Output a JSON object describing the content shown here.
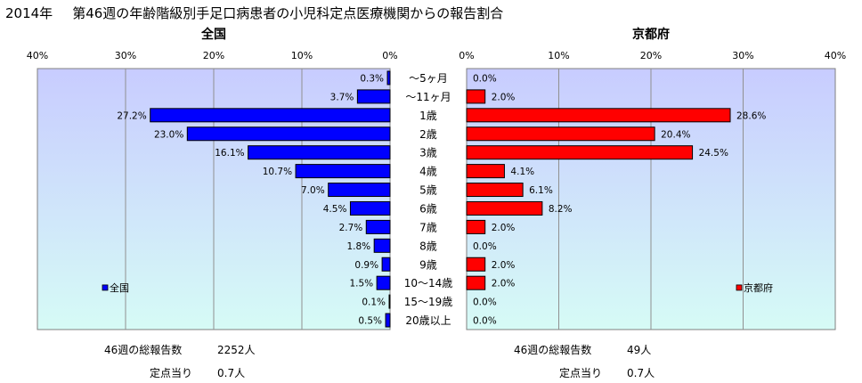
{
  "title": {
    "year": "2014年",
    "text": "第46週の年齢階級別手足口病患者の小児科定点医療機関からの報告割合"
  },
  "chart_data": [
    {
      "type": "bar",
      "orientation": "horizontal",
      "direction": "right-to-left",
      "title": "全国",
      "legend": "全国",
      "legend_position": "bottom-left",
      "grid": true,
      "xlim": [
        0,
        40
      ],
      "x_ticks": [
        "40%",
        "30%",
        "20%",
        "10%",
        "0%"
      ],
      "categories": [
        "～5ヶ月",
        "～11ヶ月",
        "1歳",
        "2歳",
        "3歳",
        "4歳",
        "5歳",
        "6歳",
        "7歳",
        "8歳",
        "9歳",
        "10～14歳",
        "15～19歳",
        "20歳以上"
      ],
      "series": [
        {
          "name": "全国",
          "color": "#0000ff",
          "values": [
            0.3,
            3.7,
            27.2,
            23.0,
            16.1,
            10.7,
            7.0,
            4.5,
            2.7,
            1.8,
            0.9,
            1.5,
            0.1,
            0.5
          ],
          "labels": [
            "0.3%",
            "3.7%",
            "27.2%",
            "23.0%",
            "16.1%",
            "10.7%",
            "7.0%",
            "4.5%",
            "2.7%",
            "1.8%",
            "0.9%",
            "1.5%",
            "0.1%",
            "0.5%"
          ]
        }
      ]
    },
    {
      "type": "bar",
      "orientation": "horizontal",
      "direction": "left-to-right",
      "title": "京都府",
      "legend": "京都府",
      "legend_position": "bottom-right",
      "grid": true,
      "xlim": [
        0,
        40
      ],
      "x_ticks": [
        "0%",
        "10%",
        "20%",
        "30%",
        "40%"
      ],
      "categories": [
        "～5ヶ月",
        "～11ヶ月",
        "1歳",
        "2歳",
        "3歳",
        "4歳",
        "5歳",
        "6歳",
        "7歳",
        "8歳",
        "9歳",
        "10～14歳",
        "15～19歳",
        "20歳以上"
      ],
      "series": [
        {
          "name": "京都府",
          "color": "#ff0000",
          "values": [
            0.0,
            2.0,
            28.6,
            20.4,
            24.5,
            4.1,
            6.1,
            8.2,
            2.0,
            0.0,
            2.0,
            2.0,
            0.0,
            0.0
          ],
          "labels": [
            "0.0%",
            "2.0%",
            "28.6%",
            "20.4%",
            "24.5%",
            "4.1%",
            "6.1%",
            "8.2%",
            "2.0%",
            "0.0%",
            "2.0%",
            "2.0%",
            "0.0%",
            "0.0%"
          ]
        }
      ]
    }
  ],
  "summary": {
    "national": {
      "total_label": "46週の総報告数",
      "total_value": "2252人",
      "per_label": "定点当り",
      "per_value": "0.7人"
    },
    "kyoto": {
      "total_label": "46週の総報告数",
      "total_value": "49人",
      "per_label": "定点当り",
      "per_value": "0.7人"
    }
  },
  "colors": {
    "plot_bg_top": "#c8ccff",
    "plot_bg_bottom": "#d6fbf6",
    "grid": "#909090"
  }
}
